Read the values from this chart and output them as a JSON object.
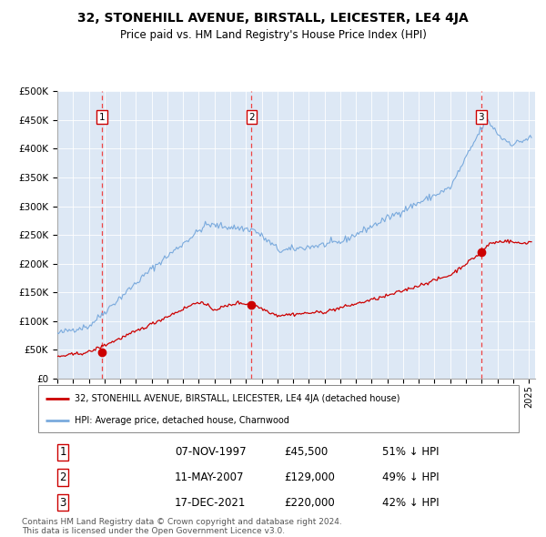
{
  "title": "32, STONEHILL AVENUE, BIRSTALL, LEICESTER, LE4 4JA",
  "subtitle": "Price paid vs. HM Land Registry's House Price Index (HPI)",
  "title_fontsize": 10,
  "subtitle_fontsize": 8.5,
  "bg_color": "#ffffff",
  "plot_bg_color": "#dde8f5",
  "grid_color": "#ffffff",
  "red_line_color": "#cc0000",
  "blue_line_color": "#7aaadd",
  "dashed_line_color": "#ee4444",
  "ylim": [
    0,
    500000
  ],
  "ytick_labels": [
    "£0",
    "£50K",
    "£100K",
    "£150K",
    "£200K",
    "£250K",
    "£300K",
    "£350K",
    "£400K",
    "£450K",
    "£500K"
  ],
  "ytick_values": [
    0,
    50000,
    100000,
    150000,
    200000,
    250000,
    300000,
    350000,
    400000,
    450000,
    500000
  ],
  "sale_year_nums": [
    1997.854,
    2007.36,
    2021.962
  ],
  "sale_prices": [
    45500,
    129000,
    220000
  ],
  "sale_labels": [
    "1",
    "2",
    "3"
  ],
  "legend_label_red": "32, STONEHILL AVENUE, BIRSTALL, LEICESTER, LE4 4JA (detached house)",
  "legend_label_blue": "HPI: Average price, detached house, Charnwood",
  "table_rows": [
    [
      "1",
      "07-NOV-1997",
      "£45,500",
      "51% ↓ HPI"
    ],
    [
      "2",
      "11-MAY-2007",
      "£129,000",
      "49% ↓ HPI"
    ],
    [
      "3",
      "17-DEC-2021",
      "£220,000",
      "42% ↓ HPI"
    ]
  ],
  "footer": "Contains HM Land Registry data © Crown copyright and database right 2024.\nThis data is licensed under the Open Government Licence v3.0.",
  "footer_fontsize": 6.5
}
